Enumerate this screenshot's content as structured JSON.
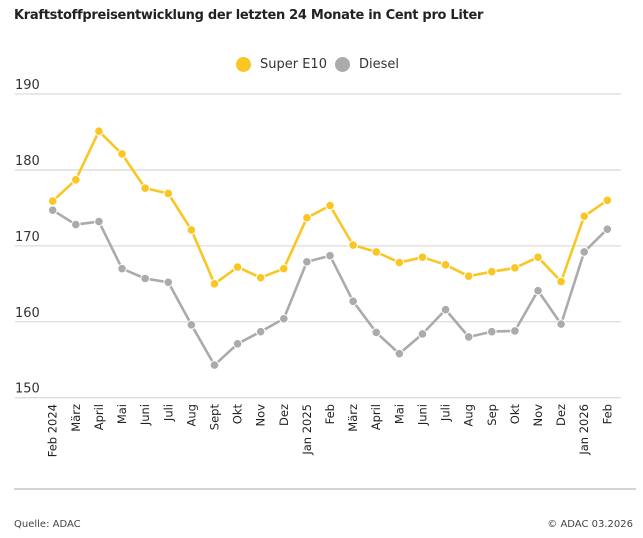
{
  "chart_data": {
    "type": "line",
    "title": "Kraftstoffpreisentwicklung der letzten 24 Monate in Cent pro Liter",
    "xlabel": "",
    "ylabel": "Cent pro Liter",
    "ylim": [
      150,
      190
    ],
    "yticks": [
      150,
      160,
      170,
      180,
      190
    ],
    "grid": true,
    "legend_position": "top-center",
    "categories": [
      "Feb 2024",
      "März",
      "April",
      "Mai",
      "Juni",
      "Juli",
      "Aug",
      "Sept",
      "Okt",
      "Nov",
      "Dez",
      "Jan 2025",
      "Feb",
      "März",
      "April",
      "Mai",
      "Juni",
      "Juli",
      "Aug",
      "Sep",
      "Okt",
      "Nov",
      "Dez",
      "Jan 2026",
      "Feb"
    ],
    "series": [
      {
        "name": "Super E10",
        "color": "#F9C623",
        "values": [
          175.9,
          178.7,
          185.1,
          182.1,
          177.6,
          176.9,
          172.1,
          165.0,
          167.2,
          165.8,
          167.0,
          173.7,
          175.3,
          170.1,
          169.2,
          167.8,
          168.5,
          167.5,
          166.0,
          166.6,
          167.1,
          168.5,
          165.3,
          173.9,
          176.0
        ]
      },
      {
        "name": "Diesel",
        "color": "#ABABAB",
        "values": [
          174.7,
          172.8,
          173.2,
          167.0,
          165.7,
          165.2,
          159.6,
          154.3,
          157.1,
          158.7,
          160.4,
          167.9,
          168.7,
          162.7,
          158.6,
          155.8,
          158.4,
          161.6,
          158.0,
          158.7,
          158.8,
          164.1,
          159.7,
          169.2,
          172.2
        ]
      }
    ]
  },
  "footer": {
    "source": "Quelle: ADAC",
    "copyright": "© ADAC 03.2026"
  }
}
